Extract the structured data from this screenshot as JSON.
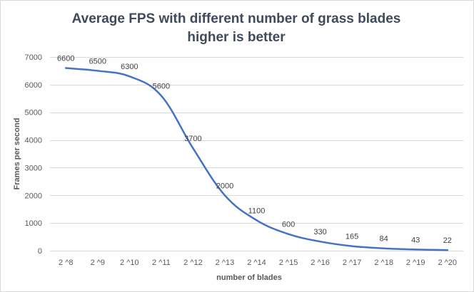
{
  "chart_data": {
    "type": "line",
    "title": "Average FPS with different number of grass blades",
    "subtitle": "higher is better",
    "xlabel": "number of blades",
    "ylabel": "Frames per second",
    "categories": [
      "2 ^8",
      "2 ^9",
      "2 ^10",
      "2 ^11",
      "2 ^12",
      "2 ^13",
      "2 ^14",
      "2 ^15",
      "2 ^16",
      "2 ^17",
      "2 ^18",
      "2 ^19",
      "2 ^20"
    ],
    "series": [
      {
        "values": [
          6600,
          6500,
          6300,
          5600,
          3700,
          2000,
          1100,
          600,
          330,
          165,
          84,
          43,
          22
        ],
        "color": "#4472c4"
      }
    ],
    "data_labels": [
      "6600",
      "6500",
      "6300",
      "5600",
      "3700",
      "2000",
      "1100",
      "600",
      "330",
      "165",
      "84",
      "43",
      "22"
    ],
    "ylim": [
      0,
      7000
    ],
    "yticks": [
      0,
      1000,
      2000,
      3000,
      4000,
      5000,
      6000,
      7000
    ],
    "ytick_labels": [
      "0",
      "1000",
      "2000",
      "3000",
      "4000",
      "5000",
      "6000",
      "7000"
    ],
    "grid": true,
    "legend": "none"
  }
}
